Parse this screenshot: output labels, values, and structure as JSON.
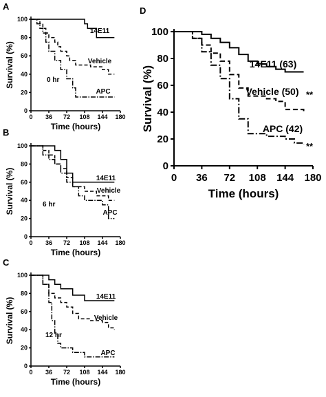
{
  "chart_data": [
    {
      "panel": "A",
      "type": "line",
      "xlabel": "Time (hours)",
      "ylabel": "Survival (%)",
      "xlim": [
        0,
        180
      ],
      "ylim": [
        0,
        100
      ],
      "xticks": [
        0,
        36,
        72,
        108,
        144,
        180
      ],
      "yticks": [
        0,
        20,
        40,
        60,
        80,
        100
      ],
      "annotation": "0 hr",
      "series": [
        {
          "name": "14E11",
          "style": "solid",
          "x": [
            0,
            96,
            108,
            114,
            132,
            168
          ],
          "y": [
            100,
            100,
            95,
            90,
            80,
            80
          ]
        },
        {
          "name": "Vehicle",
          "style": "dashed",
          "x": [
            0,
            18,
            24,
            30,
            36,
            48,
            54,
            60,
            72,
            78,
            90,
            108,
            120,
            144,
            156,
            168
          ],
          "y": [
            100,
            95,
            90,
            85,
            80,
            75,
            70,
            65,
            60,
            55,
            50,
            50,
            48,
            45,
            40,
            40
          ]
        },
        {
          "name": "APC",
          "style": "dashdot",
          "x": [
            0,
            12,
            18,
            24,
            30,
            36,
            48,
            60,
            72,
            84,
            90,
            96,
            168
          ],
          "y": [
            100,
            95,
            90,
            85,
            75,
            65,
            55,
            45,
            35,
            25,
            15,
            15,
            15
          ]
        }
      ]
    },
    {
      "panel": "B",
      "type": "line",
      "xlabel": "Time (hours)",
      "ylabel": "Survival (%)",
      "xlim": [
        0,
        180
      ],
      "ylim": [
        0,
        100
      ],
      "xticks": [
        0,
        36,
        72,
        108,
        144,
        180
      ],
      "yticks": [
        0,
        20,
        40,
        60,
        80,
        100
      ],
      "annotation": "6 hr",
      "series": [
        {
          "name": "14E11",
          "style": "solid",
          "x": [
            0,
            36,
            48,
            60,
            72,
            84,
            168
          ],
          "y": [
            100,
            100,
            95,
            85,
            70,
            60,
            60
          ]
        },
        {
          "name": "Vehicle",
          "style": "dashed",
          "x": [
            0,
            24,
            36,
            48,
            60,
            72,
            84,
            108,
            132,
            156,
            168
          ],
          "y": [
            100,
            95,
            90,
            80,
            75,
            65,
            55,
            50,
            45,
            40,
            40
          ]
        },
        {
          "name": "APC",
          "style": "dashdot",
          "x": [
            0,
            24,
            36,
            48,
            60,
            72,
            84,
            96,
            108,
            144,
            156,
            168
          ],
          "y": [
            100,
            90,
            85,
            80,
            70,
            60,
            55,
            45,
            40,
            35,
            20,
            20
          ]
        }
      ]
    },
    {
      "panel": "C",
      "type": "line",
      "xlabel": "Time (hours)",
      "ylabel": "Survival (%)",
      "xlim": [
        0,
        180
      ],
      "ylim": [
        0,
        100
      ],
      "xticks": [
        0,
        36,
        72,
        108,
        144,
        180
      ],
      "yticks": [
        0,
        20,
        40,
        60,
        80,
        100
      ],
      "annotation": "12 hr",
      "series": [
        {
          "name": "14E11",
          "style": "solid",
          "x": [
            0,
            36,
            48,
            60,
            84,
            108,
            132,
            168
          ],
          "y": [
            100,
            95,
            90,
            85,
            78,
            72,
            72,
            72
          ]
        },
        {
          "name": "Vehicle",
          "style": "dashed",
          "x": [
            0,
            24,
            36,
            48,
            60,
            72,
            84,
            96,
            120,
            144,
            156,
            168
          ],
          "y": [
            100,
            90,
            80,
            75,
            70,
            65,
            58,
            52,
            50,
            48,
            42,
            40
          ]
        },
        {
          "name": "APC",
          "style": "dashdot",
          "x": [
            0,
            24,
            36,
            42,
            48,
            54,
            60,
            84,
            108,
            168
          ],
          "y": [
            100,
            90,
            70,
            50,
            35,
            25,
            20,
            15,
            10,
            10
          ]
        }
      ]
    },
    {
      "panel": "D",
      "type": "line",
      "xlabel": "Time (hours)",
      "ylabel": "Survival (%)",
      "xlim": [
        0,
        180
      ],
      "ylim": [
        0,
        100
      ],
      "xticks": [
        0,
        36,
        72,
        108,
        144,
        180
      ],
      "yticks": [
        0,
        20,
        40,
        60,
        80,
        100
      ],
      "series": [
        {
          "name": "14E11 (63)",
          "style": "solid",
          "significance": "**",
          "x": [
            0,
            36,
            48,
            60,
            72,
            84,
            96,
            108,
            120,
            132,
            144,
            168
          ],
          "y": [
            100,
            98,
            95,
            92,
            88,
            83,
            78,
            76,
            74,
            72,
            70,
            70
          ]
        },
        {
          "name": "Vehicle (50)",
          "style": "dashed",
          "x": [
            0,
            24,
            36,
            48,
            60,
            72,
            84,
            96,
            120,
            132,
            144,
            168
          ],
          "y": [
            100,
            95,
            90,
            84,
            78,
            68,
            58,
            52,
            50,
            48,
            42,
            40
          ]
        },
        {
          "name": "APC (42)",
          "style": "dashdot",
          "significance": "**",
          "x": [
            0,
            24,
            36,
            48,
            60,
            72,
            84,
            96,
            120,
            144,
            156,
            168
          ],
          "y": [
            100,
            95,
            85,
            75,
            65,
            50,
            35,
            24,
            22,
            20,
            17,
            16
          ]
        }
      ]
    }
  ]
}
